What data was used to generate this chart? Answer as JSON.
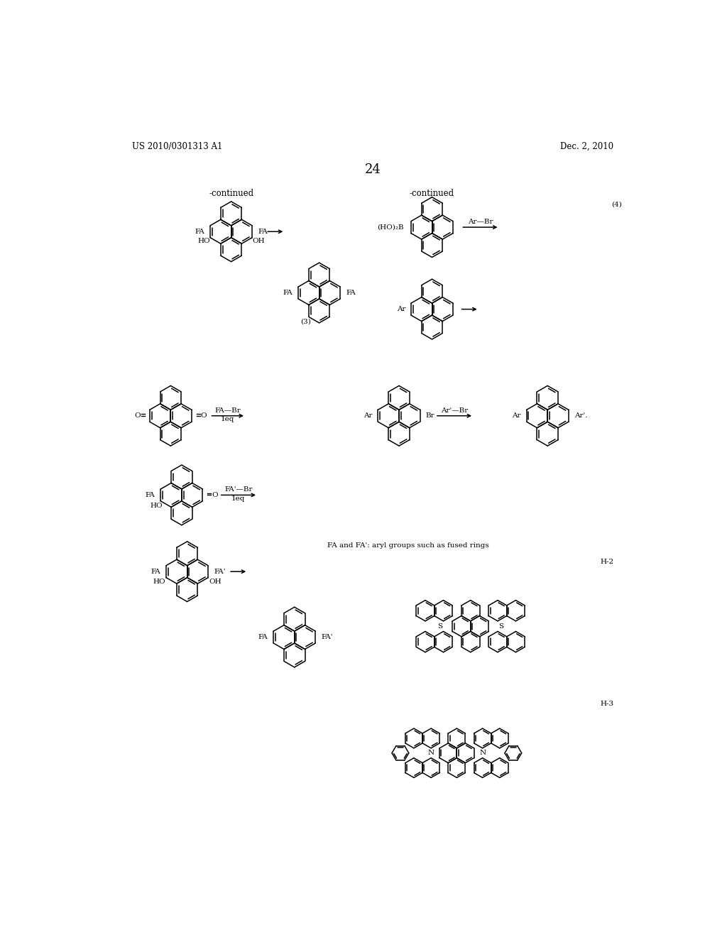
{
  "background_color": "#ffffff",
  "page_number": "24",
  "patent_number": "US 2010/0301313 A1",
  "patent_date": "Dec. 2, 2010",
  "label_fontsize": 8.5,
  "small_fontsize": 7.5,
  "tiny_fontsize": 7.0,
  "annotations": {
    "continued_left": "-continued",
    "continued_right": "-continued",
    "scheme3": "(3)",
    "scheme4": "(4)",
    "H2": "H-2",
    "H3": "H-3",
    "fa_fa_prime": "FA and FA': aryl groups such as fused rings"
  }
}
